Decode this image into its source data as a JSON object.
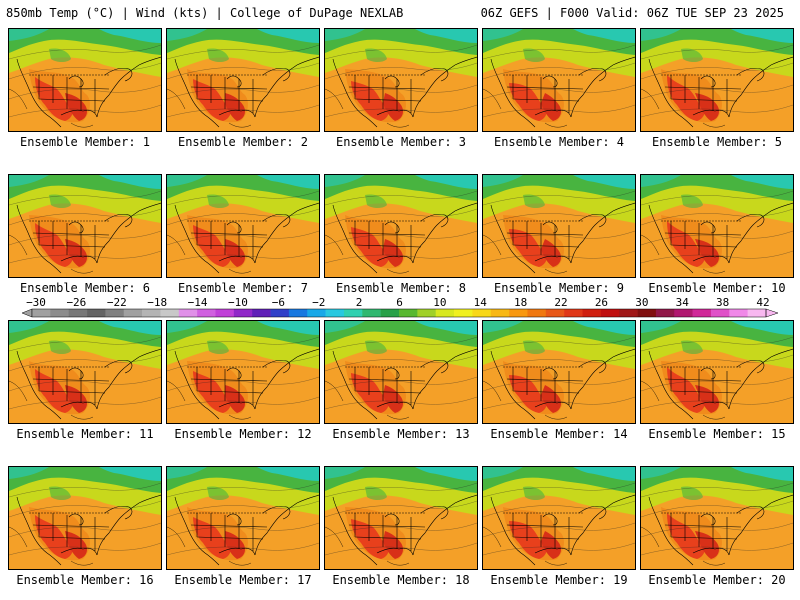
{
  "header": {
    "left": "850mb Temp (°C) | Wind (kts) | College of DuPage NEXLAB",
    "right": "06Z GEFS | F000 Valid: 06Z TUE SEP 23 2025"
  },
  "colors": {
    "west_hot": "#e8401c",
    "south_hot": "#d83018",
    "orange": "#f08c1c",
    "yellow_green": "#c8d81c",
    "green": "#48b440",
    "teal": "#28c8b0",
    "ocean_warm": "#f4a028"
  },
  "panels": [
    {
      "id": 1,
      "label": "Ensemble Member: 1"
    },
    {
      "id": 2,
      "label": "Ensemble Member: 2"
    },
    {
      "id": 3,
      "label": "Ensemble Member: 3"
    },
    {
      "id": 4,
      "label": "Ensemble Member: 4"
    },
    {
      "id": 5,
      "label": "Ensemble Member: 5"
    },
    {
      "id": 6,
      "label": "Ensemble Member: 6"
    },
    {
      "id": 7,
      "label": "Ensemble Member: 7"
    },
    {
      "id": 8,
      "label": "Ensemble Member: 8"
    },
    {
      "id": 9,
      "label": "Ensemble Member: 9"
    },
    {
      "id": 10,
      "label": "Ensemble Member: 10"
    },
    {
      "id": 11,
      "label": "Ensemble Member: 11"
    },
    {
      "id": 12,
      "label": "Ensemble Member: 12"
    },
    {
      "id": 13,
      "label": "Ensemble Member: 13"
    },
    {
      "id": 14,
      "label": "Ensemble Member: 14"
    },
    {
      "id": 15,
      "label": "Ensemble Member: 15"
    },
    {
      "id": 16,
      "label": "Ensemble Member: 16"
    },
    {
      "id": 17,
      "label": "Ensemble Member: 17"
    },
    {
      "id": 18,
      "label": "Ensemble Member: 18"
    },
    {
      "id": 19,
      "label": "Ensemble Member: 19"
    },
    {
      "id": 20,
      "label": "Ensemble Member: 20"
    }
  ],
  "colorbar": {
    "unit": "°C",
    "min": -30,
    "max": 42,
    "tick_labels": [
      "−30",
      "−26",
      "−22",
      "−18",
      "−14",
      "−10",
      "−6",
      "−2",
      "2",
      "6",
      "10",
      "14",
      "18",
      "22",
      "26",
      "30",
      "34",
      "38",
      "42"
    ],
    "segment_colors": [
      "#a0a0a0",
      "#8c8c8c",
      "#787878",
      "#646464",
      "#808080",
      "#a0a0a0",
      "#b4b4b4",
      "#c8c8c8",
      "#e090e8",
      "#d060e0",
      "#c040d8",
      "#9028c8",
      "#6020b8",
      "#3040c8",
      "#1878e0",
      "#18a8e8",
      "#28c8e0",
      "#30d0b0",
      "#30b870",
      "#28a048",
      "#58b830",
      "#a0d028",
      "#d8e820",
      "#f0f020",
      "#f8d818",
      "#f8b814",
      "#f89810",
      "#f07810",
      "#e85818",
      "#e03818",
      "#d02010",
      "#c01010",
      "#a01818",
      "#801010",
      "#901848",
      "#b01870",
      "#d02898",
      "#e050c8",
      "#f088e8",
      "#f8b8f0"
    ]
  }
}
